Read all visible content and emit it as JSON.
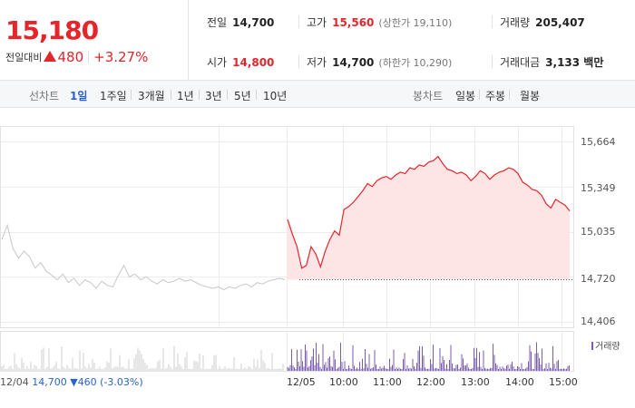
{
  "summary": {
    "current_price": "15,180",
    "change_label": "전일대비",
    "change_amount": "480",
    "change_percent": "+3.27%",
    "prev_close_label": "전일",
    "prev_close": "14,700",
    "high_label": "고가",
    "high": "15,560",
    "upper_limit": "(상한가 19,110)",
    "volume_label": "거래량",
    "volume": "205,407",
    "open_label": "시가",
    "open": "14,800",
    "low_label": "저가",
    "low": "14,700",
    "lower_limit": "(하한가 10,290)",
    "value_label": "거래대금",
    "value": "3,133 백만"
  },
  "tabs": {
    "line_group": "선차트",
    "line_items": [
      "1일",
      "1주일",
      "3개월",
      "1년",
      "3년",
      "5년",
      "10년"
    ],
    "line_active": 0,
    "candle_group": "봉차트",
    "candle_items": [
      "일봉",
      "주봉",
      "월봉"
    ]
  },
  "chart_data": {
    "type": "line",
    "y_ticks": [
      "15,664",
      "15,349",
      "15,035",
      "14,720",
      "14,406"
    ],
    "ylim": [
      14406,
      15664
    ],
    "prev_close_value": 14700,
    "x_labels": [
      "12/04",
      "12/05",
      "10:00",
      "11:00",
      "12:00",
      "13:00",
      "14:00",
      "15:00"
    ],
    "prev_day_info": {
      "date": "12/04",
      "close": "14,700",
      "change": "▼460",
      "pct": "(-3.03%)"
    },
    "volume_legend": "거래량",
    "series": [
      {
        "values": [
          15120,
          15020,
          14930,
          14780,
          14800,
          14930,
          14880,
          14790,
          14900,
          14980,
          15040,
          15010,
          15190,
          15210,
          15240,
          15280,
          15320,
          15370,
          15350,
          15390,
          15410,
          15420,
          15400,
          15430,
          15450,
          15440,
          15480,
          15470,
          15500,
          15490,
          15520,
          15530,
          15560,
          15510,
          15470,
          15460,
          15440,
          15450,
          15430,
          15390,
          15420,
          15460,
          15440,
          15400,
          15430,
          15450,
          15460,
          15480,
          15470,
          15440,
          15380,
          15360,
          15330,
          15320,
          15290,
          15230,
          15200,
          15260,
          15240,
          15220,
          15180
        ],
        "color": "#e5252a"
      },
      {
        "values": [
          14980,
          15080,
          14920,
          14850,
          14900,
          14860,
          14780,
          14820,
          14760,
          14730,
          14700,
          14740,
          14680,
          14710,
          14660,
          14700,
          14680,
          14640,
          14690,
          14660,
          14650,
          14730,
          14800,
          14720,
          14740,
          14700,
          14720,
          14690,
          14670,
          14700,
          14680,
          14690,
          14710,
          14690,
          14700,
          14680,
          14660,
          14650,
          14640,
          14650,
          14630,
          14650,
          14640,
          14660,
          14670,
          14650,
          14680,
          14670,
          14690,
          14700,
          14710,
          14700
        ],
        "color": "#c8c8c8"
      }
    ]
  },
  "colors": {
    "up": "#e5252a",
    "down": "#2a62c9",
    "area_fill": "#fde4e5",
    "volume": "#7b5cb0"
  }
}
